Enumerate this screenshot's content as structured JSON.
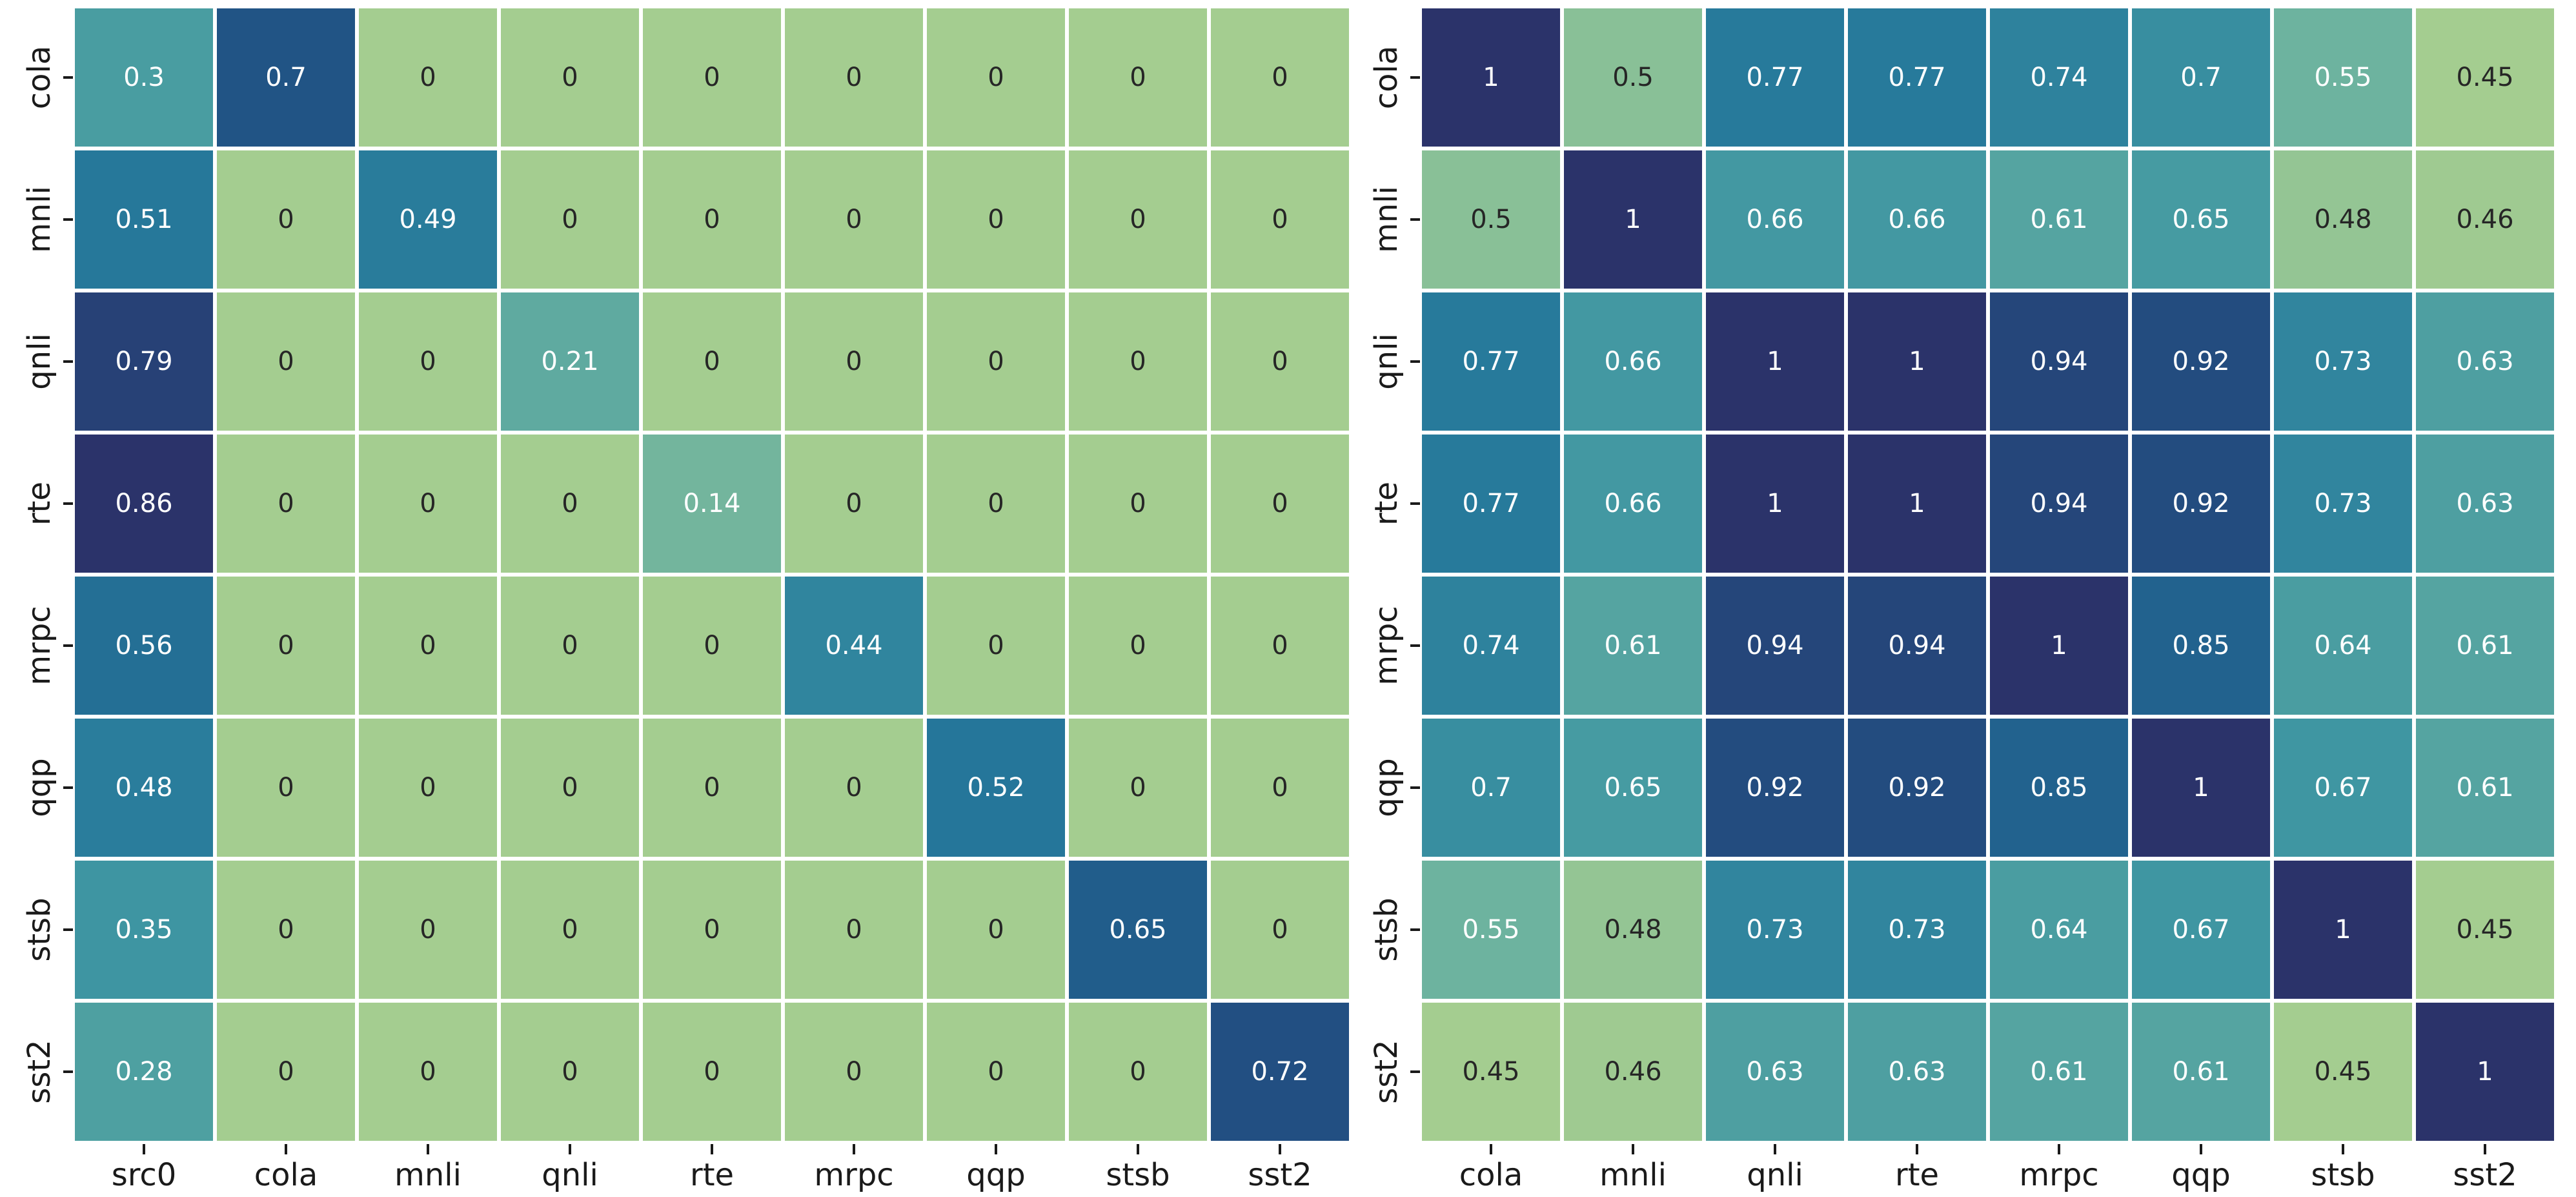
{
  "style": {
    "background": "#ffffff",
    "colormap": {
      "name": "crest-like-green-to-navy",
      "stops": [
        {
          "t": 0.0,
          "color": "#a4cd90"
        },
        {
          "t": 0.2,
          "color": "#68b0a0"
        },
        {
          "t": 0.4,
          "color": "#3f96a2"
        },
        {
          "t": 0.6,
          "color": "#25779a"
        },
        {
          "t": 0.8,
          "color": "#205687"
        },
        {
          "t": 1.0,
          "color": "#2b336a"
        }
      ]
    },
    "annotation_color_dark": "#262626",
    "annotation_color_light": "#ffffff",
    "annotation_light_threshold": 0.15,
    "tick_label_color": "#1a1a1a",
    "tick_mark_color": "#1a1a1a",
    "grid_line_color": "#ffffff"
  },
  "chart_data": [
    {
      "type": "heatmap",
      "title": "",
      "row_labels": [
        "cola",
        "mnli",
        "qnli",
        "rte",
        "mrpc",
        "qqp",
        "stsb",
        "sst2"
      ],
      "col_labels": [
        "src0",
        "cola",
        "mnli",
        "qnli",
        "rte",
        "mrpc",
        "qqp",
        "stsb",
        "sst2"
      ],
      "values": [
        [
          0.3,
          0.7,
          0,
          0,
          0,
          0,
          0,
          0,
          0
        ],
        [
          0.51,
          0,
          0.49,
          0,
          0,
          0,
          0,
          0,
          0
        ],
        [
          0.79,
          0,
          0,
          0.21,
          0,
          0,
          0,
          0,
          0
        ],
        [
          0.86,
          0,
          0,
          0,
          0.14,
          0,
          0,
          0,
          0
        ],
        [
          0.56,
          0,
          0,
          0,
          0,
          0.44,
          0,
          0,
          0
        ],
        [
          0.48,
          0,
          0,
          0,
          0,
          0,
          0.52,
          0,
          0
        ],
        [
          0.35,
          0,
          0,
          0,
          0,
          0,
          0,
          0.65,
          0
        ],
        [
          0.28,
          0,
          0,
          0,
          0,
          0,
          0,
          0,
          0.72
        ]
      ],
      "vmin": 0,
      "vmax": 0.86,
      "annotated": true,
      "legend": "none",
      "grid": "white cell separators"
    },
    {
      "type": "heatmap",
      "title": "",
      "row_labels": [
        "cola",
        "mnli",
        "qnli",
        "rte",
        "mrpc",
        "qqp",
        "stsb",
        "sst2"
      ],
      "col_labels": [
        "cola",
        "mnli",
        "qnli",
        "rte",
        "mrpc",
        "qqp",
        "stsb",
        "sst2"
      ],
      "values": [
        [
          1,
          0.5,
          0.77,
          0.77,
          0.74,
          0.7,
          0.55,
          0.45
        ],
        [
          0.5,
          1,
          0.66,
          0.66,
          0.61,
          0.65,
          0.48,
          0.46
        ],
        [
          0.77,
          0.66,
          1,
          1,
          0.94,
          0.92,
          0.73,
          0.63
        ],
        [
          0.77,
          0.66,
          1,
          1,
          0.94,
          0.92,
          0.73,
          0.63
        ],
        [
          0.74,
          0.61,
          0.94,
          0.94,
          1,
          0.85,
          0.64,
          0.61
        ],
        [
          0.7,
          0.65,
          0.92,
          0.92,
          0.85,
          1,
          0.67,
          0.61
        ],
        [
          0.55,
          0.48,
          0.73,
          0.73,
          0.64,
          0.67,
          1,
          0.45
        ],
        [
          0.45,
          0.46,
          0.63,
          0.63,
          0.61,
          0.61,
          0.45,
          1
        ]
      ],
      "vmin": 0.45,
      "vmax": 1,
      "annotated": true,
      "legend": "none",
      "grid": "white cell separators"
    }
  ]
}
